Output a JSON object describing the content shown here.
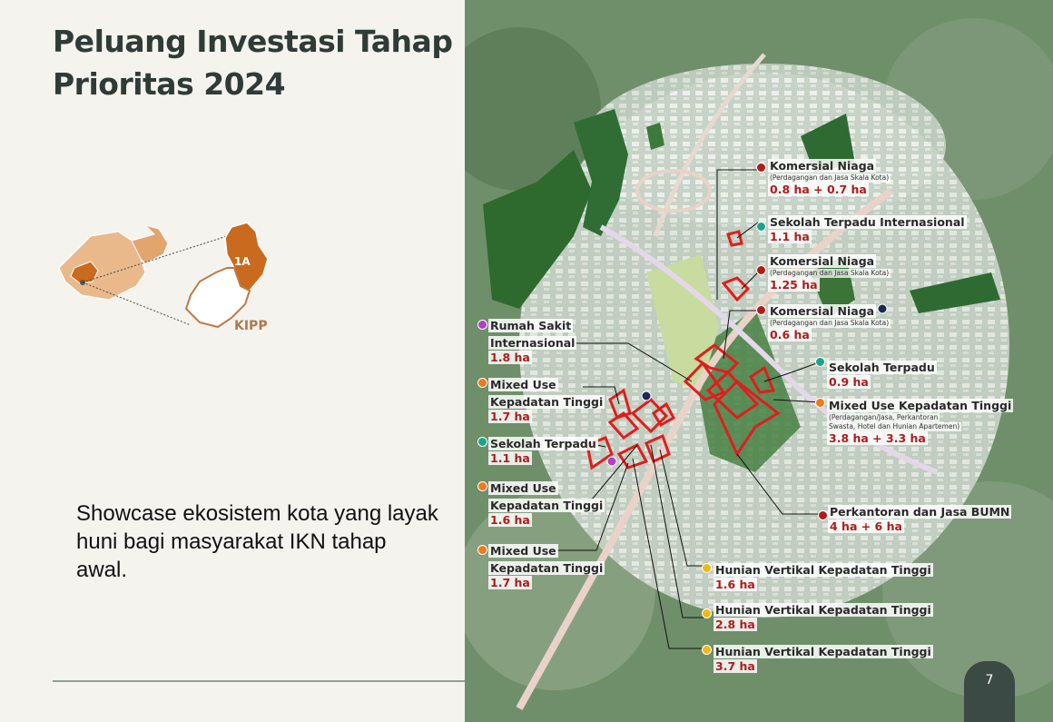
{
  "slide": {
    "title": "Peluang Investasi Tahap Prioritas 2024",
    "body": "Showcase ekosistem kota yang layak huni bagi masyarakat IKN tahap awal.",
    "page_number": "7"
  },
  "locator": {
    "zone_label": "1A",
    "area_label": "KIPP",
    "colors": {
      "highlight": "#c96a1e",
      "light": "#e9b98c",
      "outline": "#c07a45"
    }
  },
  "legend_colors": {
    "komersial": "#b01c1c",
    "sekolah": "#1aa58a",
    "rumah_sakit": "#b23fc9",
    "mixed_use": "#f07a1a",
    "hunian": "#f0b91a",
    "other": "#1b2a55"
  },
  "labels": [
    {
      "id": "komersial-1",
      "name": "Komersial Niaga",
      "sub": "(Perdagangan dan Jasa Skala Kota)",
      "area": "0.8 ha + 0.7 ha",
      "color": "komersial"
    },
    {
      "id": "sekolah-internasional",
      "name": "Sekolah Terpadu Internasional",
      "sub": "",
      "area": "1.1 ha",
      "color": "sekolah"
    },
    {
      "id": "komersial-2",
      "name": "Komersial Niaga",
      "sub": "(Perdagangan dan Jasa Skala Kota)",
      "area": "1.25 ha",
      "color": "komersial"
    },
    {
      "id": "komersial-3",
      "name": "Komersial Niaga",
      "sub": "(Perdagangan dan Jasa Skala Kota)",
      "area": "0.6 ha",
      "color": "komersial"
    },
    {
      "id": "sekolah-2",
      "name": "Sekolah Terpadu",
      "sub": "",
      "area": "0.9 ha",
      "color": "sekolah"
    },
    {
      "id": "mixed-use-east",
      "name": "Mixed Use Kepadatan Tinggi",
      "sub1": "(Perdagangan/Jasa, Perkantoran",
      "sub2": "Swasta, Hotel dan Hunian Apartemen)",
      "area": "3.8 ha + 3.3 ha",
      "color": "mixed_use"
    },
    {
      "id": "perkantoran",
      "name": "Perkantoran dan Jasa BUMN",
      "sub": "",
      "area": "4 ha + 6 ha",
      "color": "komersial"
    },
    {
      "id": "hunian-1",
      "name": "Hunian Vertikal Kepadatan Tinggi",
      "sub": "",
      "area": "1.6 ha",
      "color": "hunian"
    },
    {
      "id": "hunian-2",
      "name": "Hunian Vertikal Kepadatan Tinggi",
      "sub": "",
      "area": "2.8 ha",
      "color": "hunian"
    },
    {
      "id": "hunian-3",
      "name": "Hunian Vertikal Kepadatan Tinggi",
      "sub": "",
      "area": "3.7 ha",
      "color": "hunian"
    },
    {
      "id": "rumah-sakit",
      "name1": "Rumah Sakit",
      "name2": "Internasional",
      "area": "1.8 ha",
      "color": "rumah_sakit"
    },
    {
      "id": "mixed-use-1",
      "name1": "Mixed Use",
      "name2": "Kepadatan Tinggi",
      "area": "1.7 ha",
      "color": "mixed_use"
    },
    {
      "id": "sekolah-1",
      "name": "Sekolah Terpadu",
      "sub": "",
      "area": "1.1 ha",
      "color": "sekolah"
    },
    {
      "id": "mixed-use-2",
      "name1": "Mixed Use",
      "name2": "Kepadatan Tinggi",
      "area": "1.6 ha",
      "color": "mixed_use"
    },
    {
      "id": "mixed-use-3",
      "name1": "Mixed Use",
      "name2": "Kepadatan Tinggi",
      "area": "1.7 ha",
      "color": "mixed_use"
    }
  ]
}
